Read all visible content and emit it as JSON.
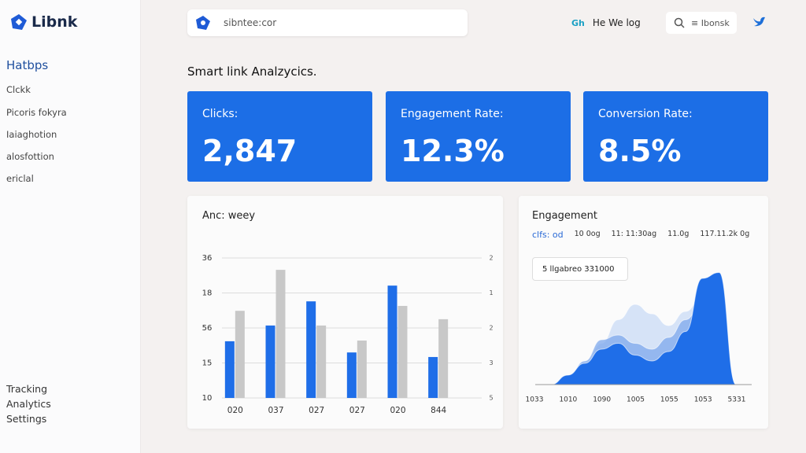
{
  "sidebar": {
    "logo": "Libnk",
    "nav": [
      "Hatbps",
      "Clckk",
      "Picoris fokyra",
      "Iaiaghotion",
      "alosfottion",
      "ericlal"
    ],
    "footer": [
      "Tracking",
      "Analytics",
      "Settings"
    ]
  },
  "topbar": {
    "search": "sibntee:cor",
    "badge": "Gh",
    "user": "He We log",
    "search2": "≡ Ibonsk"
  },
  "heading": "Smart link Analzycics.",
  "cards": [
    {
      "label": "Clicks:",
      "value": "2,847"
    },
    {
      "label": "Engagement Rate:",
      "value": "12.3%"
    },
    {
      "label": "Conversion Rate:",
      "value": "8.5%"
    }
  ],
  "chart_data": [
    {
      "type": "bar",
      "title": "Anc: weey",
      "categories": [
        "020",
        "037",
        "027",
        "027",
        "020",
        "844"
      ],
      "series": [
        {
          "color": "#1f6ee8",
          "values": [
            1.62,
            2.07,
            2.76,
            1.3,
            3.21,
            1.17
          ]
        },
        {
          "color": "#c8c8c8",
          "values": [
            2.49,
            3.66,
            2.07,
            1.64,
            2.63,
            2.25
          ]
        }
      ],
      "ylim": [
        0,
        4
      ],
      "yticks": [
        {
          "value": 0,
          "label": "10"
        },
        {
          "value": 1,
          "label": "15"
        },
        {
          "value": 2,
          "label": "56"
        },
        {
          "value": 3,
          "label": "18"
        },
        {
          "value": 4,
          "label": "36"
        }
      ],
      "y2lim": [
        0,
        4
      ],
      "y2ticks": [
        {
          "value": 0,
          "label": "5"
        },
        {
          "value": 1,
          "label": "3"
        },
        {
          "value": 2,
          "label": "2"
        },
        {
          "value": 3,
          "label": "1"
        },
        {
          "value": 4,
          "label": "2"
        }
      ],
      "grid": true
    },
    {
      "type": "area",
      "title": "Engagement",
      "header": [
        "clfs: od",
        "10 0og",
        "11: 11:30ag",
        "11.0g",
        "117.11.2k 0g"
      ],
      "tooltip": "5 llgabreo 331000",
      "xtick_labels": [
        "1033",
        "1010",
        "1090",
        "1005",
        "1055",
        "1053",
        "5331"
      ],
      "ylim": [
        0,
        100
      ],
      "series": [
        {
          "color": "#c9dbf6",
          "values": [
            0,
            5,
            15,
            35,
            55,
            68,
            60,
            50,
            62,
            75,
            40,
            0
          ]
        },
        {
          "color": "#7ea8ec",
          "values": [
            0,
            6,
            20,
            38,
            42,
            35,
            30,
            40,
            55,
            70,
            30,
            0
          ]
        },
        {
          "color": "#1f6ee8",
          "values": [
            0,
            8,
            18,
            30,
            35,
            25,
            20,
            28,
            45,
            90,
            95,
            0
          ]
        }
      ]
    }
  ]
}
